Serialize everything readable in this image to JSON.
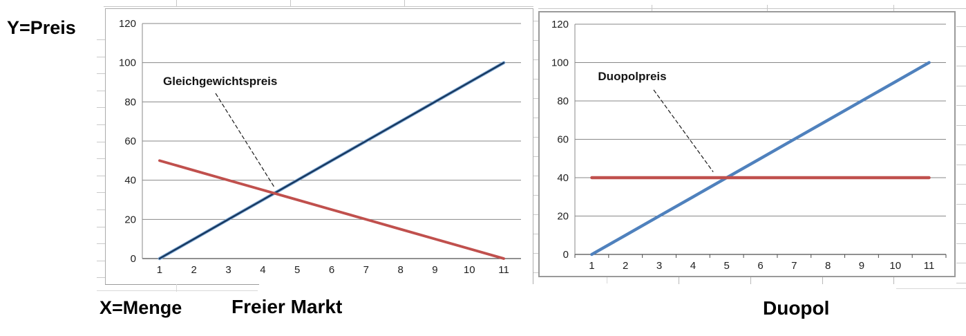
{
  "labels": {
    "y_axis": "Y=Preis",
    "x_axis": "X=Menge"
  },
  "chart_data": [
    {
      "id": "freier-markt",
      "type": "line",
      "title": "Freier Markt",
      "x": [
        1,
        2,
        3,
        4,
        5,
        6,
        7,
        8,
        9,
        10,
        11
      ],
      "ylim": [
        0,
        120
      ],
      "ytick_step": 20,
      "grid": "horizontal",
      "legend": "none",
      "series": [
        {
          "name": "rising-dark-blue-line",
          "color": "#16375E",
          "halo_color": "#7FA8D4",
          "values": [
            0,
            10,
            20,
            30,
            40,
            50,
            60,
            70,
            80,
            90,
            100
          ]
        },
        {
          "name": "falling-red-line",
          "color": "#C0504D",
          "values": [
            50,
            45,
            40,
            35,
            30,
            25,
            20,
            15,
            10,
            5,
            0
          ]
        }
      ],
      "annotation": {
        "label": "Gleichgewichtspreis",
        "target_x": 4.35,
        "target_y": 36
      }
    },
    {
      "id": "duopol",
      "type": "line",
      "title": "Duopol",
      "x": [
        1,
        2,
        3,
        4,
        5,
        6,
        7,
        8,
        9,
        10,
        11
      ],
      "ylim": [
        0,
        120
      ],
      "ytick_step": 20,
      "grid": "horizontal",
      "legend": "none",
      "series": [
        {
          "name": "rising-blue-line",
          "color": "#4F81BD",
          "values": [
            0,
            10,
            20,
            30,
            40,
            50,
            60,
            70,
            80,
            90,
            100
          ]
        },
        {
          "name": "horizontal-red-line",
          "color": "#C0504D",
          "values": [
            40,
            40,
            40,
            40,
            40,
            40,
            40,
            40,
            40,
            40,
            40
          ]
        }
      ],
      "annotation": {
        "label": "Duopolpreis",
        "target_x": 4.6,
        "target_y": 43
      }
    }
  ]
}
